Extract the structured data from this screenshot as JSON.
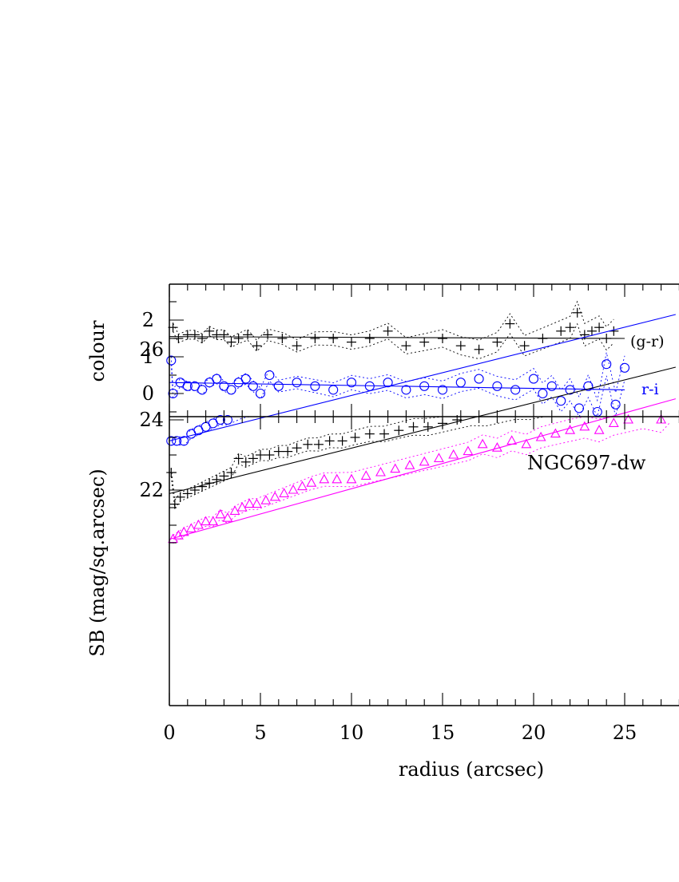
{
  "chart_data": [
    {
      "type": "scatter",
      "panel": "colour",
      "ylabel": "colour",
      "xlim": [
        0,
        28
      ],
      "ylim": [
        -0.7,
        2.9
      ],
      "y_ticks": [
        0,
        1,
        2
      ],
      "colors": {
        "g-r": "#000000",
        "r-i": "#0000ff"
      },
      "series": [
        {
          "key": "g-r",
          "name": "(g-r)",
          "marker": "plus",
          "color": "#000000",
          "x": [
            0.2,
            0.5,
            1.0,
            1.4,
            1.8,
            2.2,
            2.6,
            3.0,
            3.4,
            3.8,
            4.3,
            4.8,
            5.4,
            6.2,
            7.0,
            8.0,
            9.0,
            10.0,
            11.0,
            12.0,
            13.0,
            14.0,
            15.0,
            16.0,
            17.0,
            18.0,
            18.7,
            19.5,
            20.5,
            21.5,
            22.0,
            22.4,
            22.8,
            23.2,
            23.6,
            24.0,
            24.4
          ],
          "y": [
            1.8,
            1.5,
            1.6,
            1.6,
            1.5,
            1.7,
            1.6,
            1.6,
            1.4,
            1.5,
            1.6,
            1.3,
            1.6,
            1.5,
            1.3,
            1.5,
            1.5,
            1.4,
            1.5,
            1.7,
            1.3,
            1.4,
            1.5,
            1.3,
            1.2,
            1.4,
            1.9,
            1.3,
            1.5,
            1.7,
            1.8,
            2.2,
            1.6,
            1.7,
            1.8,
            1.5,
            1.7
          ],
          "fit": {
            "x": [
              0,
              25
            ],
            "y": [
              1.55,
              1.5
            ]
          }
        },
        {
          "key": "r-i",
          "name": "r-i",
          "marker": "circle",
          "color": "#0000ff",
          "x": [
            0.1,
            0.2,
            0.6,
            1.0,
            1.4,
            1.8,
            2.2,
            2.6,
            3.0,
            3.4,
            3.8,
            4.2,
            4.6,
            5.0,
            5.5,
            6.0,
            7.0,
            8.0,
            9.0,
            10.0,
            11.0,
            12.0,
            13.0,
            14.0,
            15.0,
            16.0,
            17.0,
            18.0,
            19.0,
            20.0,
            20.5,
            21.0,
            21.5,
            22.0,
            22.5,
            23.0,
            23.5,
            24.0,
            24.5,
            25.0
          ],
          "y": [
            0.9,
            0.0,
            0.3,
            0.2,
            0.2,
            0.1,
            0.3,
            0.4,
            0.2,
            0.1,
            0.3,
            0.4,
            0.2,
            0.0,
            0.5,
            0.2,
            0.3,
            0.2,
            0.1,
            0.3,
            0.2,
            0.3,
            0.1,
            0.2,
            0.1,
            0.3,
            0.4,
            0.2,
            0.1,
            0.4,
            0.0,
            0.2,
            -0.2,
            0.1,
            -0.4,
            0.2,
            -0.5,
            0.8,
            -0.3,
            0.7
          ],
          "fit": {
            "x": [
              0,
              25
            ],
            "y": [
              0.3,
              0.1
            ]
          }
        }
      ],
      "annotations": [
        {
          "text": "(g-r)",
          "series": "g-r"
        },
        {
          "text": "r-i",
          "series": "r-i"
        }
      ]
    },
    {
      "type": "scatter",
      "panel": "surface-brightness",
      "title": "NGC697-dw",
      "xlabel": "radius (arcsec)",
      "ylabel": "SB (mag/sq.arcsec)",
      "xlim": [
        0,
        28
      ],
      "ylim": [
        28.0,
        20.0
      ],
      "x_ticks": [
        0,
        5,
        10,
        15,
        20,
        25
      ],
      "y_ticks": [
        22,
        24,
        26
      ],
      "colors": {
        "g": "#ff00ff",
        "r": "#000000",
        "i": "#0000ff"
      },
      "series": [
        {
          "key": "g",
          "marker": "triangle",
          "color": "#ff00ff",
          "x": [
            0.2,
            0.5,
            0.8,
            1.2,
            1.6,
            2.0,
            2.4,
            2.8,
            3.2,
            3.6,
            4.0,
            4.4,
            4.8,
            5.3,
            5.8,
            6.3,
            6.8,
            7.3,
            7.8,
            8.5,
            9.2,
            10.0,
            10.8,
            11.6,
            12.4,
            13.2,
            14.0,
            14.8,
            15.6,
            16.4,
            17.2,
            18.0,
            18.8,
            19.6,
            20.4,
            21.2,
            22.0,
            22.8,
            23.6,
            24.4,
            25.2,
            26.0,
            27.0,
            27.5
          ],
          "y": [
            20.6,
            20.7,
            20.8,
            20.9,
            21.0,
            21.1,
            21.1,
            21.3,
            21.2,
            21.4,
            21.5,
            21.6,
            21.6,
            21.7,
            21.8,
            21.9,
            22.0,
            22.1,
            22.2,
            22.3,
            22.3,
            22.3,
            22.4,
            22.5,
            22.6,
            22.7,
            22.8,
            22.9,
            23.0,
            23.1,
            23.3,
            23.2,
            23.4,
            23.3,
            23.5,
            23.6,
            23.7,
            23.8,
            23.7,
            23.9,
            24.0,
            24.1,
            24.0,
            24.3
          ],
          "fit": {
            "x": [
              0,
              27.8
            ],
            "y": [
              20.6,
              24.6
            ]
          }
        },
        {
          "key": "r",
          "marker": "plus",
          "color": "#000000",
          "x": [
            0.1,
            0.3,
            0.6,
            1.0,
            1.4,
            1.8,
            2.2,
            2.6,
            3.0,
            3.4,
            3.8,
            4.2,
            4.6,
            5.0,
            5.5,
            6.0,
            6.5,
            7.0,
            7.6,
            8.2,
            8.8,
            9.5,
            10.2,
            11.0,
            11.8,
            12.6,
            13.4,
            14.2,
            15.0,
            15.8,
            16.6,
            17.4,
            18.2,
            19.0,
            19.8,
            20.6,
            21.4,
            22.2,
            23.0,
            23.8,
            24.6,
            25.4,
            26.2,
            27.0,
            27.6
          ],
          "y": [
            22.5,
            21.6,
            21.8,
            21.9,
            22.0,
            22.1,
            22.2,
            22.3,
            22.4,
            22.5,
            22.9,
            22.8,
            22.9,
            23.0,
            23.0,
            23.1,
            23.1,
            23.2,
            23.3,
            23.3,
            23.4,
            23.4,
            23.5,
            23.6,
            23.6,
            23.7,
            23.8,
            23.8,
            23.9,
            24.0,
            24.1,
            24.1,
            24.2,
            24.3,
            24.3,
            24.4,
            24.5,
            24.6,
            24.7,
            24.8,
            24.9,
            25.2,
            25.0,
            25.4,
            25.5
          ],
          "fit": {
            "x": [
              0,
              27.8
            ],
            "y": [
              21.9,
              25.5
            ]
          }
        },
        {
          "key": "i",
          "marker": "circle",
          "color": "#0000ff",
          "x": [
            0.1,
            0.4,
            0.8,
            1.2,
            1.6,
            2.0,
            2.4,
            2.8,
            3.2,
            3.6,
            4.0,
            4.4,
            4.8,
            5.3,
            5.8,
            6.3,
            6.8,
            7.3,
            7.8,
            8.4,
            9.0,
            9.6,
            10.2,
            10.8,
            11.4,
            12.0,
            12.6,
            13.2,
            13.8,
            14.4,
            15.0,
            15.6,
            16.2,
            16.8,
            17.4,
            18.0,
            18.6,
            19.2,
            19.8,
            20.4,
            21.0,
            21.6,
            22.2,
            22.8,
            23.4,
            24.0,
            24.6,
            25.2,
            25.8,
            26.4,
            27.0,
            27.6
          ],
          "y": [
            23.4,
            23.4,
            23.4,
            23.6,
            23.7,
            23.8,
            23.9,
            24.0,
            24.0,
            24.1,
            24.2,
            24.3,
            24.4,
            24.6,
            24.6,
            24.6,
            24.6,
            24.7,
            24.8,
            24.9,
            24.9,
            25.0,
            24.9,
            25.0,
            25.1,
            25.2,
            25.2,
            25.3,
            25.4,
            25.5,
            25.5,
            25.6,
            25.6,
            25.7,
            25.7,
            25.8,
            25.8,
            25.9,
            25.9,
            26.0,
            26.3,
            26.4,
            26.3,
            26.4,
            26.6,
            26.5,
            26.7,
            26.7,
            26.8,
            26.9,
            27.0,
            27.1
          ],
          "fit": {
            "x": [
              0,
              27.8
            ],
            "y": [
              23.4,
              27.0
            ]
          }
        }
      ]
    }
  ]
}
